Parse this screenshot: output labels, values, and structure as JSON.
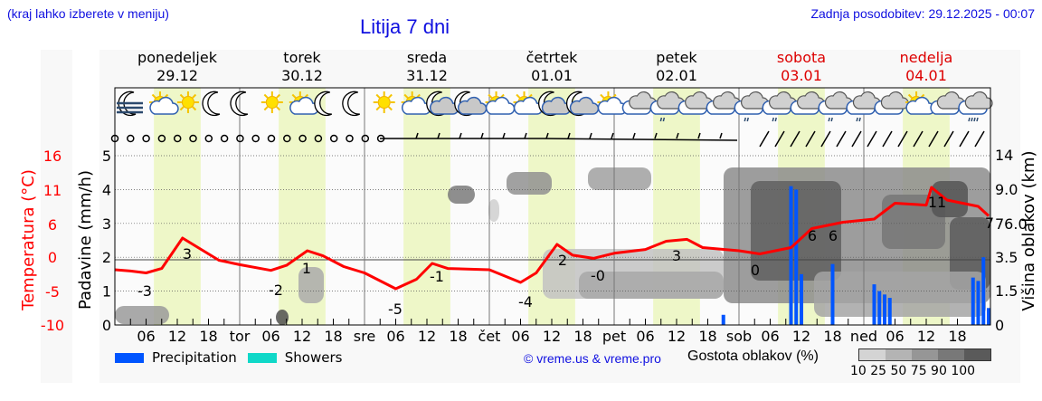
{
  "header": {
    "hint": "(kraj lahko izberete v meniju)",
    "title": "Litija 7 dni",
    "updated": "Zadnja posodobitev: 29.12.2025 - 00:07"
  },
  "days": [
    {
      "name": "ponedeljek",
      "date": "29.12",
      "weekend": false
    },
    {
      "name": "torek",
      "date": "30.12",
      "weekend": false
    },
    {
      "name": "sreda",
      "date": "31.12",
      "weekend": false
    },
    {
      "name": "četrtek",
      "date": "01.01",
      "weekend": false
    },
    {
      "name": "petek",
      "date": "02.01",
      "weekend": false
    },
    {
      "name": "sobota",
      "date": "03.01",
      "weekend": true
    },
    {
      "name": "nedelja",
      "date": "04.01",
      "weekend": true
    }
  ],
  "colors": {
    "temperature": "#ff0000",
    "precipitation": "#0055ff",
    "showers": "#10d8c8",
    "daylight": "#eef7c8",
    "weekend_text": "#dd0000",
    "header_text": "#1010e0"
  },
  "legend": {
    "precipitation": "Precipitation",
    "showers": "Showers",
    "copyright": "© vreme.us & vreme.pro",
    "cloud_density_label": "Gostota oblakov (%)",
    "cloud_scale": [
      "10",
      "25",
      "50",
      "75",
      "90",
      "100"
    ]
  },
  "chart_data": {
    "type": "line",
    "title": "Litija 7 dni",
    "x_tick_labels": [
      "06",
      "12",
      "18",
      "tor",
      "06",
      "12",
      "18",
      "sre",
      "06",
      "12",
      "18",
      "čet",
      "06",
      "12",
      "18",
      "pet",
      "06",
      "12",
      "18",
      "sob",
      "06",
      "12",
      "18",
      "ned",
      "06",
      "12",
      "18"
    ],
    "axes": {
      "left_temperature": {
        "label": "Temperatura (°C)",
        "ticks": [
          "16",
          "11",
          "6",
          "0",
          "-5",
          "-10"
        ]
      },
      "left_precipitation": {
        "label": "Padavine (mm/h)",
        "ticks": [
          "0",
          "1",
          "2",
          "3",
          "4",
          "5"
        ],
        "ylim": [
          0,
          5
        ]
      },
      "right_cloud_height": {
        "label": "Višina oblakov (km)",
        "ticks": [
          "0",
          "1.5",
          "3.5",
          "76.0",
          "9.0",
          "14"
        ]
      }
    },
    "series": [
      {
        "name": "Temperatura",
        "unit": "°C",
        "hours": [
          0,
          12,
          24,
          30,
          36,
          42,
          48,
          60,
          72,
          78,
          84,
          90,
          96,
          102,
          108,
          114,
          120,
          126,
          132,
          138,
          144,
          150,
          156,
          162,
          168
        ],
        "annotations": [
          {
            "hour": 6,
            "label": "-3"
          },
          {
            "hour": 13,
            "label": "3"
          },
          {
            "hour": 30,
            "label": "-2"
          },
          {
            "hour": 37,
            "label": "1"
          },
          {
            "hour": 54,
            "label": "-5"
          },
          {
            "hour": 61,
            "label": "-1"
          },
          {
            "hour": 78,
            "label": "-4"
          },
          {
            "hour": 85,
            "label": "2"
          },
          {
            "hour": 90,
            "label": "-0"
          },
          {
            "hour": 109,
            "label": "3"
          },
          {
            "hour": 120,
            "label": "0"
          },
          {
            "hour": 133,
            "label": "6"
          },
          {
            "hour": 136,
            "label": "6"
          },
          {
            "hour": 157,
            "label": "11"
          },
          {
            "hour": 168,
            "label": "7"
          }
        ]
      },
      {
        "name": "Precipitation",
        "unit": "mm/h",
        "bars": [
          {
            "hour": 117,
            "value": 0.3
          },
          {
            "hour": 130,
            "value": 4.1
          },
          {
            "hour": 131,
            "value": 4.0
          },
          {
            "hour": 132,
            "value": 1.5
          },
          {
            "hour": 138,
            "value": 1.8
          },
          {
            "hour": 146,
            "value": 1.2
          },
          {
            "hour": 147,
            "value": 1.0
          },
          {
            "hour": 148,
            "value": 0.9
          },
          {
            "hour": 149,
            "value": 0.8
          },
          {
            "hour": 165,
            "value": 1.4
          },
          {
            "hour": 166,
            "value": 1.3
          },
          {
            "hour": 167,
            "value": 2.0
          },
          {
            "hour": 168,
            "value": 0.5
          }
        ]
      }
    ],
    "weather_icons": [
      "fog-moon",
      "sun-cloud",
      "sun",
      "moon",
      "moon",
      "sun",
      "sun-cloud",
      "moon",
      "moon",
      "sun",
      "sun-cloud",
      "moon-cloud",
      "moon-cloud",
      "sun-cloud",
      "sun-cloud",
      "moon-cloud",
      "moon-cloud",
      "sun-cloud",
      "cloud",
      "cloud-rain",
      "cloud",
      "cloud",
      "cloud-rain",
      "cloud-rain",
      "cloud",
      "cloud-rain",
      "cloud-rain",
      "cloud",
      "sun-cloud",
      "cloud",
      "cloud-rain-heavy"
    ],
    "grid": true
  }
}
